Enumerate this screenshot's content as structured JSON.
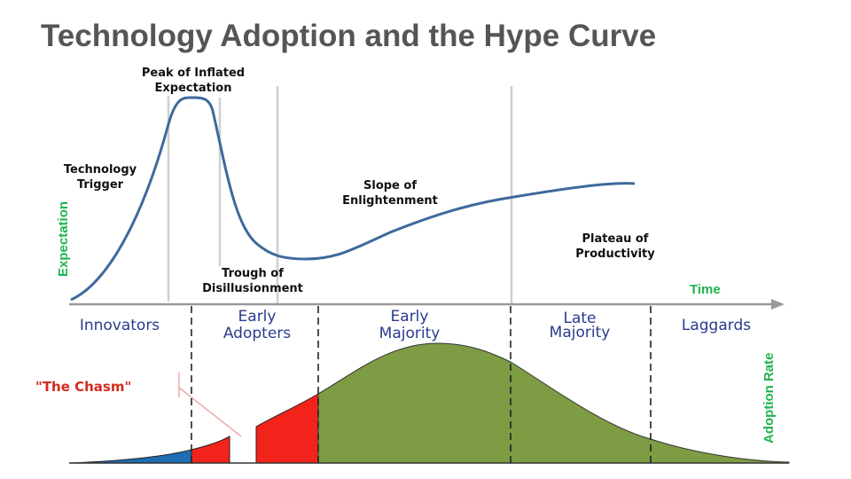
{
  "title": "Technology Adoption and the Hype Curve",
  "hype_phases": {
    "trigger": [
      "Technology",
      "Trigger"
    ],
    "peak": [
      "Peak of Inflated",
      "Expectation"
    ],
    "trough": [
      "Trough of",
      "Disillusionment"
    ],
    "slope": [
      "Slope of",
      "Enlightenment"
    ],
    "plateau": [
      "Plateau of",
      "Productivity"
    ]
  },
  "axes": {
    "y_label": "Expectation",
    "x_label": "Time",
    "adoption_label": "Adoption Rate"
  },
  "segments": {
    "innovators": [
      "Innovators"
    ],
    "early_adopters": [
      "Early",
      "Adopters"
    ],
    "early_majority": [
      "Early",
      "Majority"
    ],
    "late_majority": [
      "Late",
      "Majority"
    ],
    "laggards": [
      "Laggards"
    ]
  },
  "chasm_label": "\"The Chasm\"",
  "colors": {
    "hype_curve": "#3d6a9c",
    "innovators": "#1f6db3",
    "early_adopters": "#f2231b",
    "majority": "#7d9c44",
    "axis_labels": "#1fb34f",
    "segment_text": "#2b3a8c",
    "chasm_text": "#d42a1e"
  }
}
